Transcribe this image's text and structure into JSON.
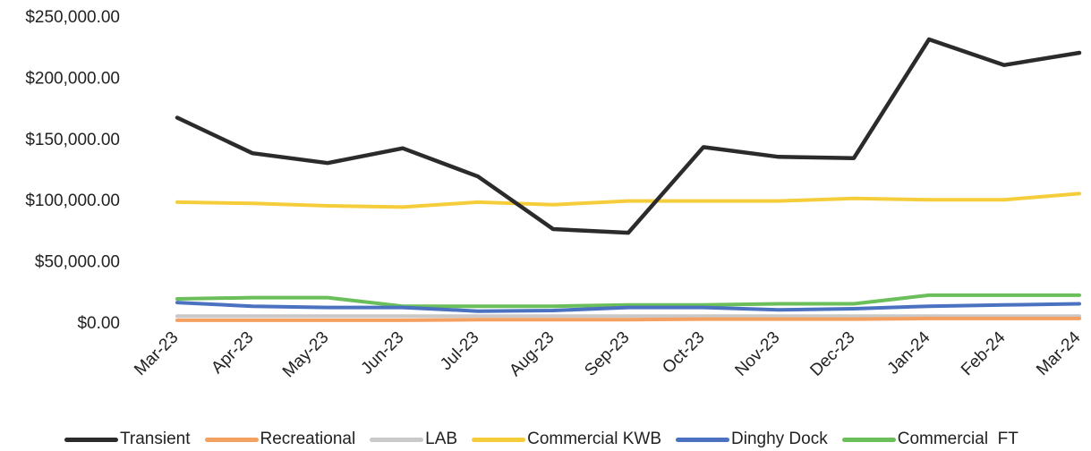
{
  "chart_data": {
    "type": "line",
    "categories": [
      "Mar-23",
      "Apr-23",
      "May-23",
      "Jun-23",
      "Jul-23",
      "Aug-23",
      "Sep-23",
      "Oct-23",
      "Nov-23",
      "Dec-23",
      "Jan-24",
      "Feb-24",
      "Mar-24"
    ],
    "yticks": [
      "$0.00",
      "$50,000.00",
      "$100,000.00",
      "$150,000.00",
      "$200,000.00",
      "$250,000.00"
    ],
    "ylim": [
      0,
      250000
    ],
    "grid": false,
    "legend_position": "bottom",
    "series": [
      {
        "name": "Transient",
        "color": "#2b2b2b",
        "values": [
          167000,
          138000,
          130000,
          142000,
          119000,
          76000,
          73000,
          143000,
          135000,
          134000,
          231000,
          210000,
          220000
        ]
      },
      {
        "name": "Recreational",
        "color": "#f4a060",
        "values": [
          1500,
          1500,
          1500,
          1500,
          2000,
          2000,
          2000,
          2500,
          2500,
          2500,
          3000,
          3000,
          3000
        ]
      },
      {
        "name": "LAB",
        "color": "#c9c9c9",
        "values": [
          5000,
          5000,
          5000,
          5000,
          5000,
          5000,
          5000,
          5000,
          5000,
          5000,
          5000,
          5000,
          5000
        ]
      },
      {
        "name": "Commercial KWB",
        "color": "#f5cd3a",
        "values": [
          98000,
          97000,
          95000,
          94000,
          98000,
          96000,
          99000,
          99000,
          99000,
          101000,
          100000,
          100000,
          105000
        ]
      },
      {
        "name": "Dinghy Dock",
        "color": "#4a72c0",
        "values": [
          16000,
          13000,
          12000,
          12000,
          9000,
          9500,
          12000,
          12000,
          10000,
          11000,
          13000,
          14000,
          15000
        ]
      },
      {
        "name": "Commercial  FT",
        "color": "#6abf5a",
        "values": [
          19000,
          20000,
          20000,
          13000,
          13000,
          13000,
          14000,
          14000,
          15000,
          15000,
          22000,
          22000,
          22000
        ]
      }
    ]
  }
}
